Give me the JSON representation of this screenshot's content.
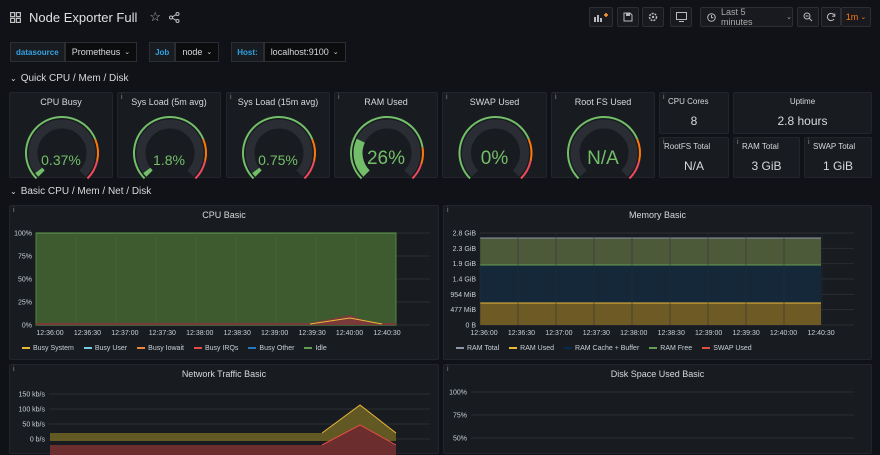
{
  "header": {
    "title": "Node Exporter Full",
    "time_range": "Last 5 minutes",
    "refresh": "1m"
  },
  "variables": [
    {
      "label": "datasource",
      "value": "Prometheus"
    },
    {
      "label": "Job",
      "value": "node"
    },
    {
      "label": "Host:",
      "value": "localhost:9100"
    }
  ],
  "rows": {
    "quick": "Quick CPU / Mem / Disk",
    "basic": "Basic CPU / Mem / Net / Disk"
  },
  "gauges": [
    {
      "title": "CPU Busy",
      "value": "0.37%",
      "fraction": 0.0037
    },
    {
      "title": "Sys Load (5m avg)",
      "value": "1.8%",
      "fraction": 0.018
    },
    {
      "title": "Sys Load (15m avg)",
      "value": "0.75%",
      "fraction": 0.0075
    },
    {
      "title": "RAM Used",
      "value": "26%",
      "fraction": 0.26
    },
    {
      "title": "SWAP Used",
      "value": "0%",
      "fraction": 0
    },
    {
      "title": "Root FS Used",
      "value": "N/A",
      "fraction": 0
    }
  ],
  "stats": [
    {
      "title": "CPU Cores",
      "value": "8"
    },
    {
      "title": "Uptime",
      "value": "2.8 hours"
    },
    {
      "title": "RootFS Total",
      "value": "N/A"
    },
    {
      "title": "RAM Total",
      "value": "3 GiB"
    },
    {
      "title": "SWAP Total",
      "value": "1 GiB"
    }
  ],
  "time_ticks": [
    "12:36:00",
    "12:36:30",
    "12:37:00",
    "12:37:30",
    "12:38:00",
    "12:38:30",
    "12:39:00",
    "12:39:30",
    "12:40:00",
    "12:40:30"
  ],
  "cpu_panel": {
    "title": "CPU Basic",
    "yticks": [
      "100%",
      "75%",
      "50%",
      "25%",
      "0%"
    ],
    "legend": [
      {
        "name": "Busy System",
        "color": "#eab839"
      },
      {
        "name": "Busy User",
        "color": "#6ed0e0"
      },
      {
        "name": "Busy Iowait",
        "color": "#ef843c"
      },
      {
        "name": "Busy IRQs",
        "color": "#e24d42"
      },
      {
        "name": "Busy Other",
        "color": "#1f78c1"
      },
      {
        "name": "Idle",
        "color": "#629e51"
      }
    ]
  },
  "mem_panel": {
    "title": "Memory Basic",
    "yticks": [
      "2.8 GiB",
      "2.3 GiB",
      "1.9 GiB",
      "1.4 GiB",
      "954 MiB",
      "477 MiB",
      "0 B"
    ],
    "legend": [
      {
        "name": "RAM Total",
        "color": "#8f98a8"
      },
      {
        "name": "RAM Used",
        "color": "#eab839"
      },
      {
        "name": "RAM Cache + Buffer",
        "color": "#052b51"
      },
      {
        "name": "RAM Free",
        "color": "#629e51"
      },
      {
        "name": "SWAP Used",
        "color": "#e24d42"
      }
    ]
  },
  "net_panel": {
    "title": "Network Traffic Basic",
    "yticks": [
      "150 kb/s",
      "100 kb/s",
      "50 kb/s",
      "0 b/s"
    ]
  },
  "disk_panel": {
    "title": "Disk Space Used Basic",
    "yticks": [
      "100%",
      "75%",
      "50%"
    ]
  },
  "colors": {
    "accent": "#33a2e5",
    "green": "#73bf69",
    "orange": "#ff780a",
    "red": "#f2495c"
  }
}
